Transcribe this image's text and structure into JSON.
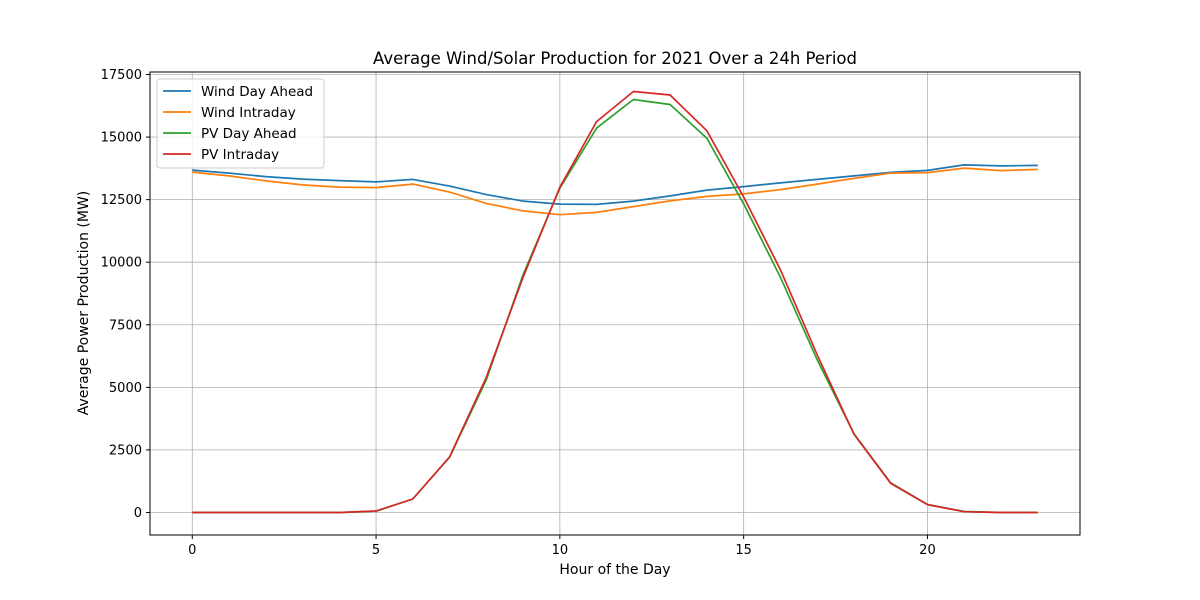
{
  "chart_data": {
    "type": "line",
    "title": "Average Wind/Solar Production for 2021 Over a 24h Period",
    "xlabel": "Hour of the Day",
    "ylabel": "Average Power Production (MW)",
    "x": [
      0,
      1,
      2,
      3,
      4,
      5,
      6,
      7,
      8,
      9,
      10,
      11,
      12,
      13,
      14,
      15,
      16,
      17,
      18,
      19,
      20,
      21,
      22,
      23
    ],
    "xlim": [
      -1.15,
      24.15
    ],
    "ylim": [
      -900,
      17600
    ],
    "xticks": [
      0,
      5,
      10,
      15,
      20
    ],
    "yticks": [
      0,
      2500,
      5000,
      7500,
      10000,
      12500,
      15000,
      17500
    ],
    "grid": true,
    "legend_position": "top-left",
    "series": [
      {
        "name": "Wind Day Ahead",
        "color": "#1f77b4",
        "values": [
          13680,
          13560,
          13420,
          13320,
          13260,
          13210,
          13310,
          13040,
          12700,
          12440,
          12320,
          12310,
          12440,
          12650,
          12880,
          13020,
          13170,
          13310,
          13450,
          13590,
          13670,
          13890,
          13850,
          13870
        ]
      },
      {
        "name": "Wind Intraday",
        "color": "#ff7f0e",
        "values": [
          13600,
          13450,
          13250,
          13090,
          13000,
          12980,
          13120,
          12800,
          12350,
          12050,
          11900,
          11990,
          12220,
          12450,
          12630,
          12730,
          12900,
          13120,
          13350,
          13560,
          13580,
          13760,
          13660,
          13710
        ]
      },
      {
        "name": "PV Day Ahead",
        "color": "#2ca02c",
        "values": [
          0,
          0,
          0,
          0,
          0,
          50,
          540,
          2210,
          5300,
          9500,
          12960,
          15360,
          16500,
          16300,
          14950,
          12330,
          9400,
          6100,
          3150,
          1180,
          320,
          40,
          0,
          0
        ]
      },
      {
        "name": "PV Intraday",
        "color": "#d62728",
        "values": [
          0,
          0,
          0,
          0,
          0,
          60,
          540,
          2220,
          5400,
          9400,
          13000,
          15620,
          16820,
          16680,
          15250,
          12600,
          9700,
          6300,
          3130,
          1160,
          310,
          30,
          0,
          0
        ]
      }
    ]
  }
}
